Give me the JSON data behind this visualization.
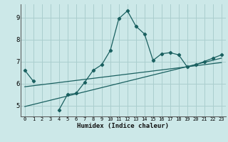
{
  "xlabel": "Humidex (Indice chaleur)",
  "bg_color": "#cce8e8",
  "grid_color": "#aacece",
  "line_color": "#1a6060",
  "xlim": [
    -0.5,
    23.5
  ],
  "ylim": [
    4.5,
    9.6
  ],
  "yticks": [
    5,
    6,
    7,
    8,
    9
  ],
  "xticks": [
    0,
    1,
    2,
    3,
    4,
    5,
    6,
    7,
    8,
    9,
    10,
    11,
    12,
    13,
    14,
    15,
    16,
    17,
    18,
    19,
    20,
    21,
    22,
    23
  ],
  "curve1_x": [
    0,
    1,
    2,
    3,
    4,
    5,
    6,
    7,
    8,
    9,
    10,
    11,
    12,
    13,
    14,
    15,
    16,
    17,
    18,
    19,
    20,
    21,
    22,
    23
  ],
  "curve1_y": [
    6.6,
    6.1,
    null,
    null,
    4.8,
    5.5,
    5.55,
    6.05,
    6.6,
    6.85,
    7.5,
    8.95,
    9.3,
    8.6,
    8.25,
    7.05,
    7.35,
    7.4,
    7.3,
    6.75,
    6.85,
    7.0,
    7.15,
    7.3
  ],
  "line1_x": [
    0,
    23
  ],
  "line1_y": [
    5.85,
    6.95
  ],
  "line2_x": [
    0,
    23
  ],
  "line2_y": [
    4.95,
    7.15
  ]
}
